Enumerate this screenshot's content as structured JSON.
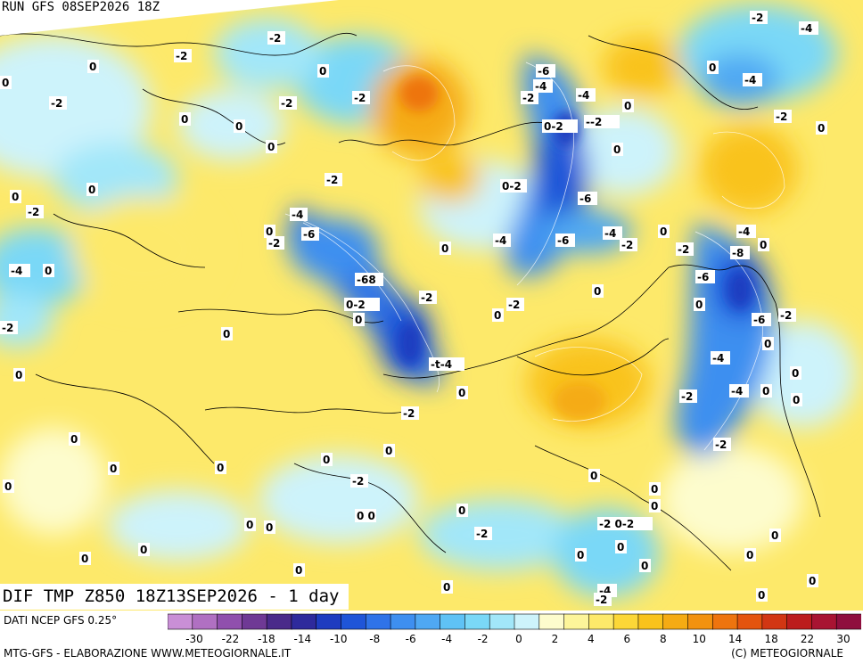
{
  "header": {
    "run_title": "RUN GFS 08SEP2026 18Z"
  },
  "map": {
    "bottom_title": "DIF TMP Z850 18Z13SEP2026 - 1 day",
    "contour_labels": [
      "0",
      "-2",
      "-4",
      "-6",
      "-8",
      "-68",
      "-t-4",
      "--2",
      "0-2",
      "0 0",
      "-2 0-2"
    ]
  },
  "legend": {
    "colors": [
      "#c98fd6",
      "#b070c2",
      "#9050ad",
      "#6f3995",
      "#4a2a8a",
      "#2e2a9c",
      "#1e3cc0",
      "#1f55d8",
      "#2f73e8",
      "#3e8ff0",
      "#4fa8f3",
      "#5fc2f5",
      "#7ad8f7",
      "#a2e7f9",
      "#cdf3fb",
      "#fdfccd",
      "#fdf59a",
      "#fde96a",
      "#fcd737",
      "#f9c31c",
      "#f5ab13",
      "#f2920f",
      "#ee740e",
      "#e4540e",
      "#d23613",
      "#bc1d1d",
      "#a81432",
      "#8f0f3e"
    ],
    "ticks": [
      "-30",
      "-22",
      "-18",
      "-14",
      "-10",
      "-8",
      "-6",
      "-4",
      "-2",
      "0",
      "2",
      "4",
      "6",
      "8",
      "10",
      "14",
      "18",
      "22",
      "30"
    ]
  },
  "footer": {
    "source": "DATI NCEP GFS 0.25°",
    "credit_left": "MTG-GFS - ELABORAZIONE WWW.METEOGIORNALE.IT",
    "credit_right": "(C) METEOGIORNALE"
  }
}
